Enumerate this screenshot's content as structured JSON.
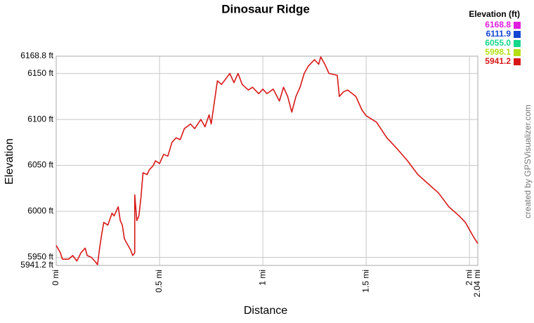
{
  "chart_data": {
    "type": "line",
    "title": "Dinosaur Ridge",
    "x_label": "Distance",
    "y_label": "Elevation",
    "credit": "created by GPSVisualizer.com",
    "legend_title": "Elevation (ft)",
    "color_scale": [
      {
        "value": 6168.8,
        "label": "6168.8",
        "color": "#e01ee0"
      },
      {
        "value": 6111.9,
        "label": "6111.9",
        "color": "#1446d2"
      },
      {
        "value": 6055.0,
        "label": "6055.0",
        "color": "#14d88c"
      },
      {
        "value": 5998.1,
        "label": "5998.1",
        "color": "#b4e014"
      },
      {
        "value": 5941.2,
        "label": "5941.2",
        "color": "#d81818"
      }
    ],
    "x": [
      0,
      0.02,
      0.03,
      0.06,
      0.08,
      0.1,
      0.12,
      0.14,
      0.15,
      0.17,
      0.19,
      0.2,
      0.21,
      0.22,
      0.23,
      0.25,
      0.27,
      0.28,
      0.3,
      0.31,
      0.32,
      0.33,
      0.36,
      0.37,
      0.38,
      0.38,
      0.39,
      0.4,
      0.41,
      0.42,
      0.44,
      0.45,
      0.47,
      0.48,
      0.5,
      0.52,
      0.54,
      0.56,
      0.58,
      0.6,
      0.62,
      0.65,
      0.67,
      0.7,
      0.72,
      0.74,
      0.75,
      0.78,
      0.8,
      0.84,
      0.86,
      0.88,
      0.9,
      0.93,
      0.95,
      0.98,
      1.0,
      1.02,
      1.05,
      1.08,
      1.1,
      1.12,
      1.14,
      1.16,
      1.18,
      1.2,
      1.22,
      1.25,
      1.27,
      1.28,
      1.3,
      1.32,
      1.36,
      1.37,
      1.39,
      1.41,
      1.45,
      1.48,
      1.5,
      1.55,
      1.6,
      1.65,
      1.7,
      1.75,
      1.8,
      1.85,
      1.9,
      1.95,
      1.98,
      2.0,
      2.02,
      2.04
    ],
    "values": [
      5963,
      5955,
      5948,
      5948,
      5952,
      5946,
      5955,
      5960,
      5952,
      5950,
      5945,
      5942,
      5960,
      5975,
      5988,
      5985,
      5998,
      5995,
      6005,
      5990,
      5985,
      5970,
      5958,
      5952,
      5955,
      6018,
      5990,
      5995,
      6015,
      6042,
      6040,
      6045,
      6050,
      6055,
      6052,
      6062,
      6060,
      6075,
      6080,
      6078,
      6090,
      6095,
      6090,
      6100,
      6092,
      6105,
      6095,
      6142,
      6138,
      6150,
      6140,
      6150,
      6138,
      6132,
      6135,
      6128,
      6133,
      6128,
      6133,
      6120,
      6135,
      6125,
      6108,
      6125,
      6135,
      6150,
      6158,
      6165,
      6160,
      6168,
      6160,
      6150,
      6148,
      6125,
      6130,
      6132,
      6125,
      6110,
      6104,
      6097,
      6080,
      6068,
      6055,
      6040,
      6030,
      6020,
      6005,
      5995,
      5988,
      5980,
      5972,
      5965
    ],
    "xlim": [
      0,
      2.04
    ],
    "ylim": [
      5941.2,
      6168.8
    ],
    "xticks": [
      {
        "value": 0,
        "label": "0 mi"
      },
      {
        "value": 0.5,
        "label": "0.5 mi"
      },
      {
        "value": 1,
        "label": "1 mi"
      },
      {
        "value": 1.5,
        "label": "1.5 mi"
      },
      {
        "value": 2,
        "label": "2 mi"
      },
      {
        "value": 2.04,
        "label": "2.04 mi"
      }
    ],
    "yticks": [
      {
        "value": 5941.2,
        "label": "5941.2 ft"
      },
      {
        "value": 5950,
        "label": "5950 ft"
      },
      {
        "value": 6000,
        "label": "6000 ft"
      },
      {
        "value": 6050,
        "label": "6050 ft"
      },
      {
        "value": 6100,
        "label": "6100 ft"
      },
      {
        "value": 6150,
        "label": "6150 ft"
      },
      {
        "value": 6168.8,
        "label": "6168.8 ft"
      }
    ],
    "grid": true
  }
}
